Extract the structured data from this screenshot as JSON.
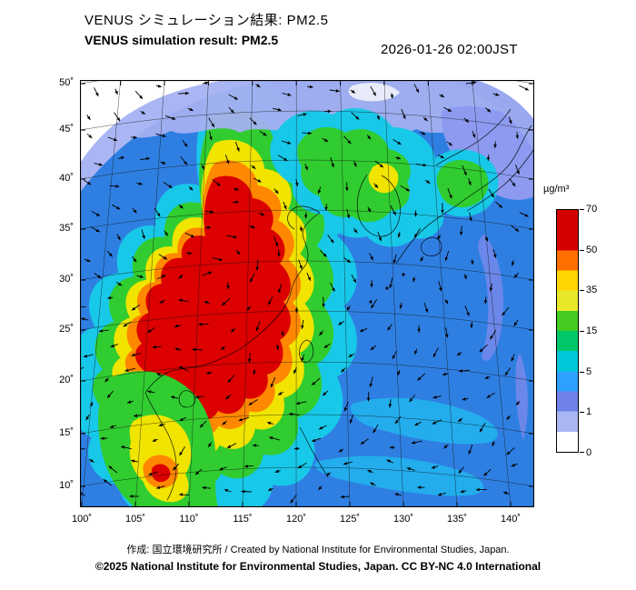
{
  "header": {
    "title_ja": "VENUS シミュレーション結果: PM2.5",
    "title_en": "VENUS simulation result: PM2.5",
    "timestamp": "2026-01-26 02:00JST"
  },
  "map": {
    "lat_ticks": [
      "50˚",
      "45˚",
      "40˚",
      "35˚",
      "30˚",
      "25˚",
      "20˚",
      "15˚",
      "10˚"
    ],
    "lon_ticks": [
      "100˚",
      "105˚",
      "110˚",
      "115˚",
      "120˚",
      "125˚",
      "130˚",
      "135˚",
      "140˚"
    ]
  },
  "colorbar": {
    "unit": "µg/m³",
    "tick_labels": [
      "70",
      "50",
      "35",
      "15",
      "5",
      "1",
      "0"
    ],
    "anchor_colors": [
      "#d40000",
      "#ff6f00",
      "#ffd400",
      "#44cc22",
      "#00c8d8",
      "#6e82ea",
      "#ffffff"
    ]
  },
  "footer": {
    "credit": "作成: 国立環境研究所 / Created by National Institute for Environmental Studies, Japan.",
    "license": "©2025 National Institute for Environmental Studies, Japan. CC BY-NC 4.0 International"
  }
}
